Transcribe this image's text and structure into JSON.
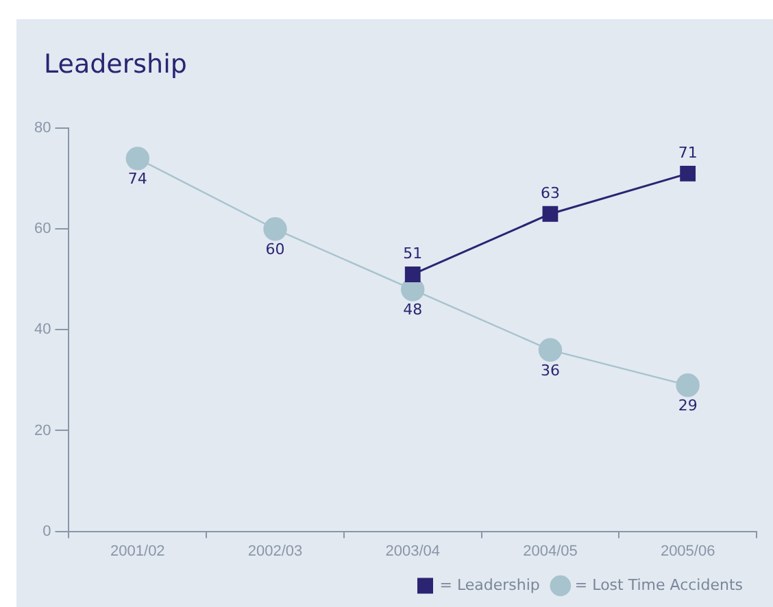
{
  "chart_data": {
    "type": "line",
    "title": "Leadership",
    "categories": [
      "2001/02",
      "2002/03",
      "2003/04",
      "2004/05",
      "2005/06"
    ],
    "series": [
      {
        "name": "= Leadership",
        "color": "#2b2472",
        "marker": "square",
        "values": [
          null,
          null,
          51,
          63,
          71
        ]
      },
      {
        "name": "= Lost Time Accidents",
        "color": "#a7c3ce",
        "marker": "circle",
        "values": [
          74,
          60,
          48,
          36,
          29
        ]
      }
    ],
    "ylim": [
      0,
      80
    ],
    "yticks": [
      0,
      20,
      40,
      60,
      80
    ],
    "grid": false,
    "legend": "bottom right",
    "data_labels": true
  }
}
